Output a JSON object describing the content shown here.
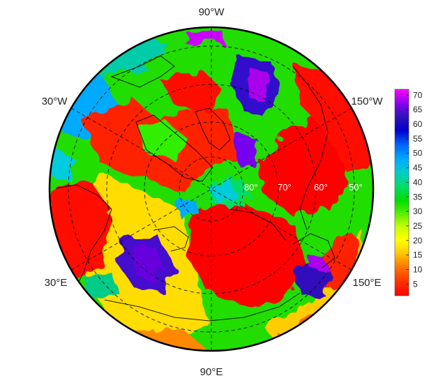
{
  "map": {
    "projection": "north-polar-stereographic",
    "longitude_labels": {
      "top": "90°W",
      "upper_left": "30°W",
      "upper_right": "150°W",
      "lower_left": "30°E",
      "lower_right": "150°E",
      "bottom": "90°E"
    },
    "latitude_labels": [
      "80°",
      "70°",
      "60°",
      "50°"
    ],
    "colorbar": {
      "ticks": [
        "70",
        "65",
        "60",
        "55",
        "50",
        "45",
        "40",
        "35",
        "30",
        "25",
        "20",
        "15",
        "10",
        "5"
      ],
      "min": 1,
      "max": 72,
      "colors": [
        "#ff0000",
        "#ff3300",
        "#ff7700",
        "#ffcc00",
        "#ffff00",
        "#ccff00",
        "#55ee00",
        "#00dd00",
        "#00dd66",
        "#00cccc",
        "#00aaff",
        "#0066ff",
        "#0000cc",
        "#3311bb",
        "#8800ee",
        "#ff00ff"
      ]
    }
  }
}
